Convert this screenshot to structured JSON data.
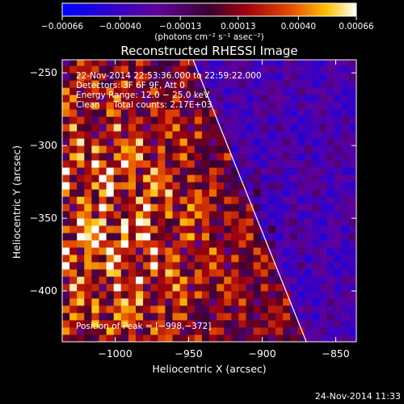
{
  "chart_data": {
    "type": "heatmap",
    "title": "Reconstructed RHESSI Image",
    "xlabel": "Heliocentric X (arcsec)",
    "ylabel": "Heliocentric Y (arcsec)",
    "xlim": [
      -1036,
      -836
    ],
    "ylim": [
      -435,
      -241
    ],
    "x_ticks": [
      -1000,
      -950,
      -900,
      -850
    ],
    "x_tick_labels": [
      "−1000",
      "−950",
      "−900",
      "−850"
    ],
    "y_ticks": [
      -250,
      -300,
      -350,
      -400
    ],
    "y_tick_labels": [
      "−250",
      "−300",
      "−350",
      "−400"
    ],
    "colorbar": {
      "range": [
        -0.00066,
        0.00066
      ],
      "ticks": [
        -0.00066,
        -0.0004,
        -0.00013,
        0.00013,
        0.0004,
        0.00066
      ],
      "tick_labels": [
        "−0.00066",
        "−0.00040",
        "−0.00013",
        "0.00013",
        "0.00040",
        "0.00066"
      ],
      "unit_label": "(photons cm⁻² s⁻¹ asec⁻²)",
      "colors": [
        "#0000ff",
        "#3300cc",
        "#660099",
        "#990066",
        "#cc2200",
        "#ff6600",
        "#ffcc00",
        "#ffffff"
      ]
    },
    "annotations": {
      "time_range": "22-Nov-2014 22:53:36.000 to 22:59:22.000",
      "detectors": "Detectors: 3F 6F 9F, Att 0",
      "energy": "Energy Range: 12.0 − 25.0 keV",
      "clean": "Clean     Total counts: 2.17E+03",
      "peak": "Position of Peak = [−998,−372]"
    },
    "peak_position": [
      -998,
      -372
    ],
    "limb_line": [
      [
        -947,
        -241
      ],
      [
        -870,
        -435
      ]
    ],
    "grid": false
  },
  "footer": {
    "timestamp": "24-Nov-2014 11:33"
  }
}
